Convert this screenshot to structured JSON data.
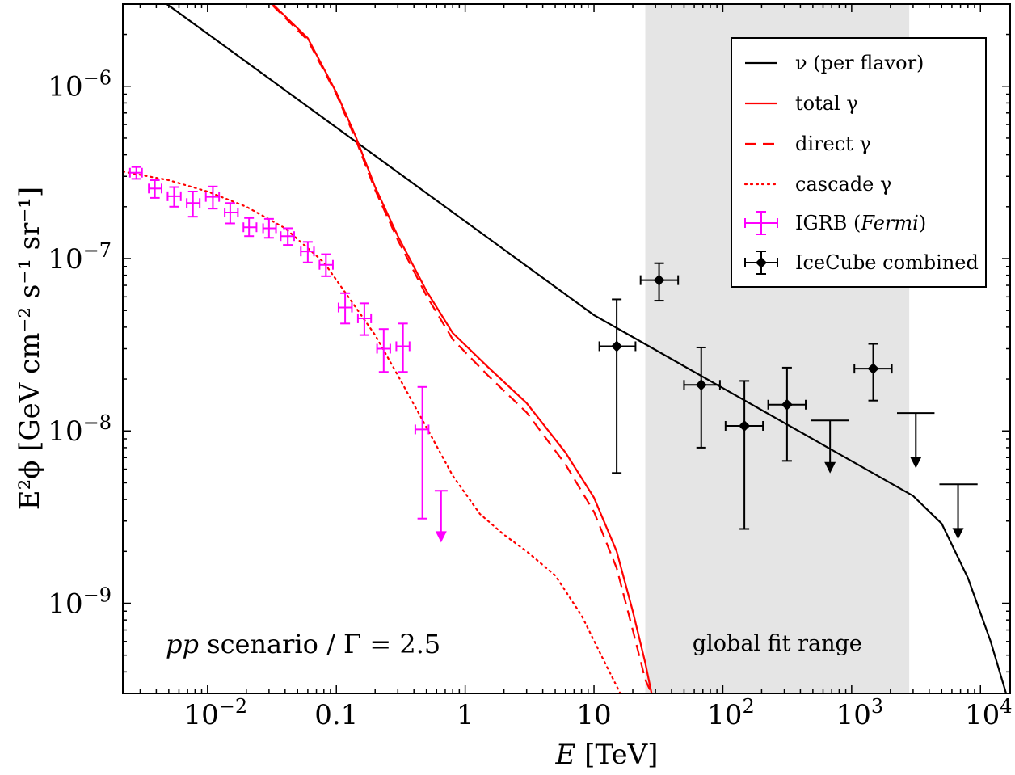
{
  "chart_data": {
    "type": "line",
    "log_x": true,
    "log_y": true,
    "xlim": [
      0.0022,
      17000
    ],
    "ylim": [
      3e-10,
      3e-06
    ],
    "xlabel": {
      "italic": "E",
      "rest": " [TeV]"
    },
    "ylabel": "E²ϕ [GeV cm⁻² s⁻¹ sr⁻¹]",
    "x_ticks": [
      {
        "value": 0.01,
        "label": "10",
        "sup": "−2"
      },
      {
        "value": 0.1,
        "label": "0.1",
        "sup": ""
      },
      {
        "value": 1,
        "label": "1",
        "sup": ""
      },
      {
        "value": 10,
        "label": "10",
        "sup": ""
      },
      {
        "value": 100,
        "label": "10",
        "sup": "2"
      },
      {
        "value": 1000,
        "label": "10",
        "sup": "3"
      },
      {
        "value": 10000,
        "label": "10",
        "sup": "4"
      }
    ],
    "y_ticks": [
      {
        "value": 1e-06,
        "label": "10",
        "sup": "−6"
      },
      {
        "value": 1e-07,
        "label": "10",
        "sup": "−7"
      },
      {
        "value": 1e-08,
        "label": "10",
        "sup": "−8"
      },
      {
        "value": 1e-09,
        "label": "10",
        "sup": "−9"
      }
    ],
    "shaded_band": {
      "x_range": [
        25,
        2800
      ],
      "label": "global fit range",
      "color": "#e5e5e5"
    },
    "annotation": {
      "italic": "pp",
      "rest": " scenario / Γ = 2.5"
    },
    "legend_position": "top-right",
    "series": [
      {
        "name": "ν (per flavor)",
        "kind": "line",
        "color": "#000000",
        "style": "solid",
        "x": [
          0.0022,
          10,
          3000,
          5000,
          8000,
          12000,
          17000
        ],
        "y": [
          4.6e-06,
          4.7e-08,
          4.2e-09,
          2.9e-09,
          1.4e-09,
          6e-10,
          2.5e-10
        ]
      },
      {
        "name": "total γ",
        "kind": "line",
        "color": "#ff0000",
        "style": "solid",
        "x": [
          0.032,
          0.06,
          0.1,
          0.14,
          0.2,
          0.3,
          0.5,
          0.8,
          1.5,
          3,
          6,
          10,
          15,
          20,
          25,
          28
        ],
        "y": [
          3e-06,
          1.9e-06,
          9.2e-07,
          5.2e-07,
          2.6e-07,
          1.35e-07,
          6.5e-08,
          3.7e-08,
          2.35e-08,
          1.45e-08,
          7.5e-09,
          4.1e-09,
          2e-09,
          9e-10,
          4.5e-10,
          3e-10
        ]
      },
      {
        "name": "direct γ",
        "kind": "line",
        "color": "#ff0000",
        "style": "dashed",
        "x": [
          0.032,
          0.06,
          0.1,
          0.14,
          0.2,
          0.3,
          0.5,
          0.8,
          1.5,
          3,
          6,
          10,
          15,
          20,
          25,
          28
        ],
        "y": [
          2.95e-06,
          1.85e-06,
          9e-07,
          5e-07,
          2.5e-07,
          1.28e-07,
          6.1e-08,
          3.4e-08,
          2.1e-08,
          1.28e-08,
          6.4e-09,
          3.4e-09,
          1.6e-09,
          7e-10,
          3.6e-10,
          3e-10
        ]
      },
      {
        "name": "cascade γ",
        "kind": "line",
        "color": "#ff0000",
        "style": "dotted",
        "x": [
          0.0022,
          0.005,
          0.01,
          0.02,
          0.04,
          0.08,
          0.12,
          0.2,
          0.3,
          0.5,
          0.8,
          1.3,
          2,
          3,
          5,
          8,
          12,
          16
        ],
        "y": [
          3.2e-07,
          2.85e-07,
          2.45e-07,
          2e-07,
          1.5e-07,
          9.5e-08,
          6.2e-08,
          3.6e-08,
          2.1e-08,
          1.05e-08,
          5.5e-09,
          3.3e-09,
          2.5e-09,
          2e-09,
          1.45e-09,
          8.5e-10,
          4.6e-10,
          3e-10
        ]
      },
      {
        "name": "IGRB (Fermi)",
        "name_plain": "IGRB (",
        "name_italic": "Fermi",
        "name_end": ")",
        "kind": "errorbar",
        "color": "#ff00ff",
        "marker": "none",
        "points": [
          {
            "x": 0.0028,
            "y": 3.15e-07,
            "xlo": 0.0025,
            "xhi": 0.0031,
            "ylo": 2.9e-07,
            "yhi": 3.4e-07
          },
          {
            "x": 0.0039,
            "y": 2.55e-07,
            "xlo": 0.0035,
            "xhi": 0.0044,
            "ylo": 2.25e-07,
            "yhi": 2.85e-07
          },
          {
            "x": 0.0055,
            "y": 2.3e-07,
            "xlo": 0.0049,
            "xhi": 0.0062,
            "ylo": 2e-07,
            "yhi": 2.6e-07
          },
          {
            "x": 0.0077,
            "y": 2.1e-07,
            "xlo": 0.0069,
            "xhi": 0.0087,
            "ylo": 1.75e-07,
            "yhi": 2.45e-07
          },
          {
            "x": 0.011,
            "y": 2.28e-07,
            "xlo": 0.0097,
            "xhi": 0.0123,
            "ylo": 1.95e-07,
            "yhi": 2.62e-07
          },
          {
            "x": 0.015,
            "y": 1.85e-07,
            "xlo": 0.0136,
            "xhi": 0.0172,
            "ylo": 1.6e-07,
            "yhi": 2.1e-07
          },
          {
            "x": 0.021,
            "y": 1.52e-07,
            "xlo": 0.019,
            "xhi": 0.024,
            "ylo": 1.35e-07,
            "yhi": 1.72e-07
          },
          {
            "x": 0.03,
            "y": 1.5e-07,
            "xlo": 0.027,
            "xhi": 0.034,
            "ylo": 1.32e-07,
            "yhi": 1.7e-07
          },
          {
            "x": 0.042,
            "y": 1.35e-07,
            "xlo": 0.037,
            "xhi": 0.047,
            "ylo": 1.2e-07,
            "yhi": 1.5e-07
          },
          {
            "x": 0.06,
            "y": 1.1e-07,
            "xlo": 0.053,
            "xhi": 0.067,
            "ylo": 9.5e-08,
            "yhi": 1.25e-07
          },
          {
            "x": 0.083,
            "y": 9.2e-08,
            "xlo": 0.074,
            "xhi": 0.094,
            "ylo": 7.9e-08,
            "yhi": 1.06e-07
          },
          {
            "x": 0.117,
            "y": 5.2e-08,
            "xlo": 0.104,
            "xhi": 0.132,
            "ylo": 4.2e-08,
            "yhi": 6.3e-08
          },
          {
            "x": 0.165,
            "y": 4.5e-08,
            "xlo": 0.147,
            "xhi": 0.186,
            "ylo": 3.6e-08,
            "yhi": 5.5e-08
          },
          {
            "x": 0.233,
            "y": 3e-08,
            "xlo": 0.207,
            "xhi": 0.262,
            "ylo": 2.2e-08,
            "yhi": 3.9e-08
          },
          {
            "x": 0.329,
            "y": 3.1e-08,
            "xlo": 0.292,
            "xhi": 0.37,
            "ylo": 2.2e-08,
            "yhi": 4.2e-08
          },
          {
            "x": 0.465,
            "y": 1.02e-08,
            "xlo": 0.41,
            "xhi": 0.52,
            "ylo": 3.1e-09,
            "yhi": 1.8e-08
          }
        ],
        "upper_limits": [
          {
            "x": 0.65,
            "y": 4.5e-09,
            "xlo": 0.58,
            "xhi": 0.73,
            "arrow_to": 2.3e-09
          }
        ]
      },
      {
        "name": "IceCube combined",
        "kind": "errorbar",
        "color": "#000000",
        "marker": "diamond",
        "points": [
          {
            "x": 15,
            "y": 3.1e-08,
            "xlo": 11,
            "xhi": 21,
            "ylo": 5.7e-09,
            "yhi": 5.8e-08
          },
          {
            "x": 32,
            "y": 7.5e-08,
            "xlo": 23,
            "xhi": 45,
            "ylo": 5.7e-08,
            "yhi": 9.4e-08
          },
          {
            "x": 68,
            "y": 1.85e-08,
            "xlo": 50,
            "xhi": 95,
            "ylo": 8e-09,
            "yhi": 3.05e-08
          },
          {
            "x": 147,
            "y": 1.07e-08,
            "xlo": 105,
            "xhi": 205,
            "ylo": 2.7e-09,
            "yhi": 1.95e-08
          },
          {
            "x": 315,
            "y": 1.42e-08,
            "xlo": 225,
            "xhi": 440,
            "ylo": 6.7e-09,
            "yhi": 2.33e-08
          }
        ],
        "extra_points": [
          {
            "x": 1470,
            "y": 2.3e-08,
            "xlo": 1050,
            "xhi": 2050,
            "ylo": 1.5e-08,
            "yhi": 3.2e-08
          }
        ],
        "upper_limits": [
          {
            "x": 680,
            "y": 1.15e-08,
            "xlo": 480,
            "xhi": 950,
            "arrow_to": 5.8e-09
          },
          {
            "x": 3150,
            "y": 1.27e-08,
            "xlo": 2250,
            "xhi": 4400,
            "arrow_to": 6.2e-09
          },
          {
            "x": 6700,
            "y": 4.9e-09,
            "xlo": 4800,
            "xhi": 9500,
            "arrow_to": 2.4e-09
          }
        ]
      }
    ]
  }
}
